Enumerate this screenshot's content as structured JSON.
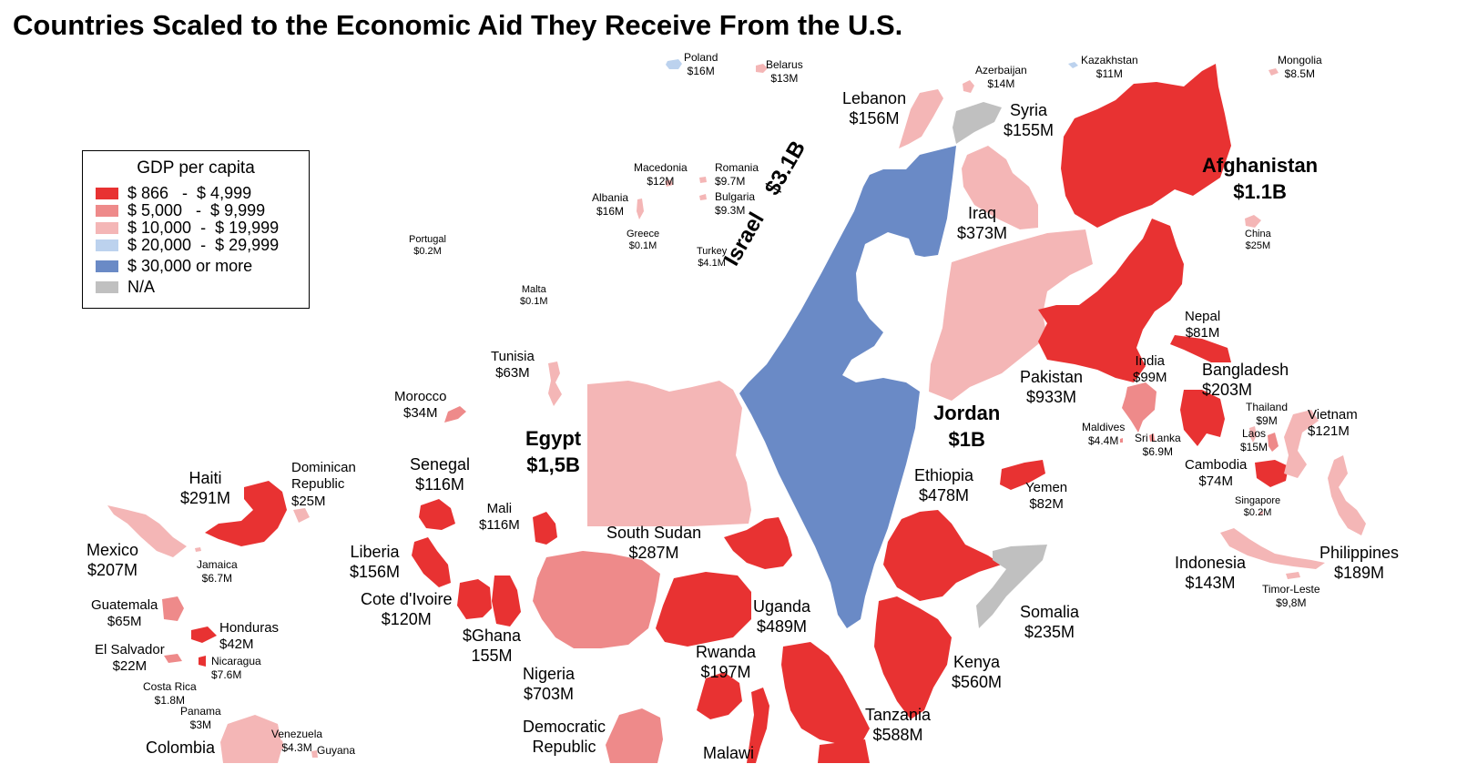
{
  "title": "Countries Scaled to the Economic Aid They Receive From the U.S.",
  "legend": {
    "title": "GDP per capita",
    "items": [
      {
        "label": "$ 866   -  $ 4,999",
        "color": "#e83232"
      },
      {
        "label": "$ 5,000   -  $ 9,999",
        "color": "#ee8a8a"
      },
      {
        "label": "$ 10,000  -  $ 19,999",
        "color": "#f4b6b6"
      },
      {
        "label": "$ 20,000  -  $ 29,999",
        "color": "#bcd2ee"
      },
      {
        "label": "$ 30,000 or more",
        "color": "#6a8ac6"
      },
      {
        "label": "N/A",
        "color": "#c0c0c0"
      }
    ]
  },
  "countries": {
    "poland": {
      "name": "Poland",
      "aid": "$16M"
    },
    "belarus": {
      "name": "Belarus",
      "aid": "$13M"
    },
    "azerbaijan": {
      "name": "Azerbaijan",
      "aid": "$14M"
    },
    "kazakhstan": {
      "name": "Kazakhstan",
      "aid": "$11M"
    },
    "mongolia": {
      "name": "Mongolia",
      "aid": "$8.5M"
    },
    "lebanon": {
      "name": "Lebanon",
      "aid": "$156M"
    },
    "syria": {
      "name": "Syria",
      "aid": "$155M"
    },
    "afghanistan": {
      "name": "Afghanistan",
      "aid": "$1.1B"
    },
    "macedonia": {
      "name": "Macedonia",
      "aid": "$12M"
    },
    "romania": {
      "name": "Romania",
      "aid": "$9.7M"
    },
    "bulgaria": {
      "name": "Bulgaria",
      "aid": "$9.3M"
    },
    "albania": {
      "name": "Albania",
      "aid": "$16M"
    },
    "greece": {
      "name": "Greece",
      "aid": "$0.1M"
    },
    "turkey": {
      "name": "Turkey",
      "aid": "$4.1M"
    },
    "portugal": {
      "name": "Portugal",
      "aid": "$0.2M"
    },
    "iraq": {
      "name": "Iraq",
      "aid": "$373M"
    },
    "china": {
      "name": "China",
      "aid": "$25M"
    },
    "israel": {
      "name": "Israel",
      "aid": "$3.1B"
    },
    "malta": {
      "name": "Malta",
      "aid": "$0.1M"
    },
    "nepal": {
      "name": "Nepal",
      "aid": "$81M"
    },
    "tunisia": {
      "name": "Tunisia",
      "aid": "$63M"
    },
    "pakistan": {
      "name": "Pakistan",
      "aid": "$933M"
    },
    "india": {
      "name": "India",
      "aid": "$99M"
    },
    "bangladesh": {
      "name": "Bangladesh",
      "aid": "$203M"
    },
    "morocco": {
      "name": "Morocco",
      "aid": "$34M"
    },
    "jordan": {
      "name": "Jordan",
      "aid": "$1B"
    },
    "thailand": {
      "name": "Thailand",
      "aid": "$9M"
    },
    "vietnam": {
      "name": "Vietnam",
      "aid": "$121M"
    },
    "maldives": {
      "name": "Maldives",
      "aid": "$4.4M"
    },
    "sri_lanka": {
      "name": "Sri Lanka",
      "aid": "$6.9M"
    },
    "laos": {
      "name": "Laos",
      "aid": "$15M"
    },
    "egypt": {
      "name": "Egypt",
      "aid": "$1,5B"
    },
    "cambodia": {
      "name": "Cambodia",
      "aid": "$74M"
    },
    "senegal": {
      "name": "Senegal",
      "aid": "$116M"
    },
    "dominican_republic": {
      "name_1": "Dominican",
      "name_2": "Republic",
      "aid": "$25M"
    },
    "haiti": {
      "name": "Haiti",
      "aid": "$291M"
    },
    "ethiopia": {
      "name": "Ethiopia",
      "aid": "$478M"
    },
    "yemen": {
      "name": "Yemen",
      "aid": "$82M"
    },
    "singapore": {
      "name": "Singapore",
      "aid": "$0.2M"
    },
    "mali": {
      "name": "Mali",
      "aid": "$116M"
    },
    "south_sudan": {
      "name": "South Sudan",
      "aid": "$287M"
    },
    "mexico": {
      "name": "Mexico",
      "aid": "$207M"
    },
    "jamaica": {
      "name": "Jamaica",
      "aid": "$6.7M"
    },
    "liberia": {
      "name": "Liberia",
      "aid": "$156M"
    },
    "indonesia": {
      "name": "Indonesia",
      "aid": "$143M"
    },
    "philippines": {
      "name": "Philippines",
      "aid": "$189M"
    },
    "timor_leste": {
      "name": "Timor-Leste",
      "aid": "$9,8M"
    },
    "cote_divoire": {
      "name": "Cote d'Ivoire",
      "aid": "$120M"
    },
    "guatemala": {
      "name": "Guatemala",
      "aid": "$65M"
    },
    "uganda": {
      "name": "Uganda",
      "aid": "$489M"
    },
    "somalia": {
      "name": "Somalia",
      "aid": "$235M"
    },
    "honduras": {
      "name": "Honduras",
      "aid": "$42M"
    },
    "ghana": {
      "name": "$Ghana",
      "aid": "155M"
    },
    "el_salvador": {
      "name": "El Salvador",
      "aid": "$22M"
    },
    "nicaragua": {
      "name": "Nicaragua",
      "aid": "$7.6M"
    },
    "rwanda": {
      "name": "Rwanda",
      "aid": "$197M"
    },
    "kenya": {
      "name": "Kenya",
      "aid": "$560M"
    },
    "nigeria": {
      "name": "Nigeria",
      "aid": "$703M"
    },
    "costa_rica": {
      "name": "Costa Rica",
      "aid": "$1.8M"
    },
    "panama": {
      "name": "Panama",
      "aid": "$3M"
    },
    "tanzania": {
      "name": "Tanzania",
      "aid": "$588M"
    },
    "venezuela": {
      "name": "Venezuela",
      "aid": "$4.3M"
    },
    "democratic_republic": {
      "name_1": "Democratic",
      "name_2": "Republic"
    },
    "colombia": {
      "name": "Colombia"
    },
    "guyana": {
      "name": "Guyana"
    },
    "malawi": {
      "name": "Malawi"
    }
  }
}
